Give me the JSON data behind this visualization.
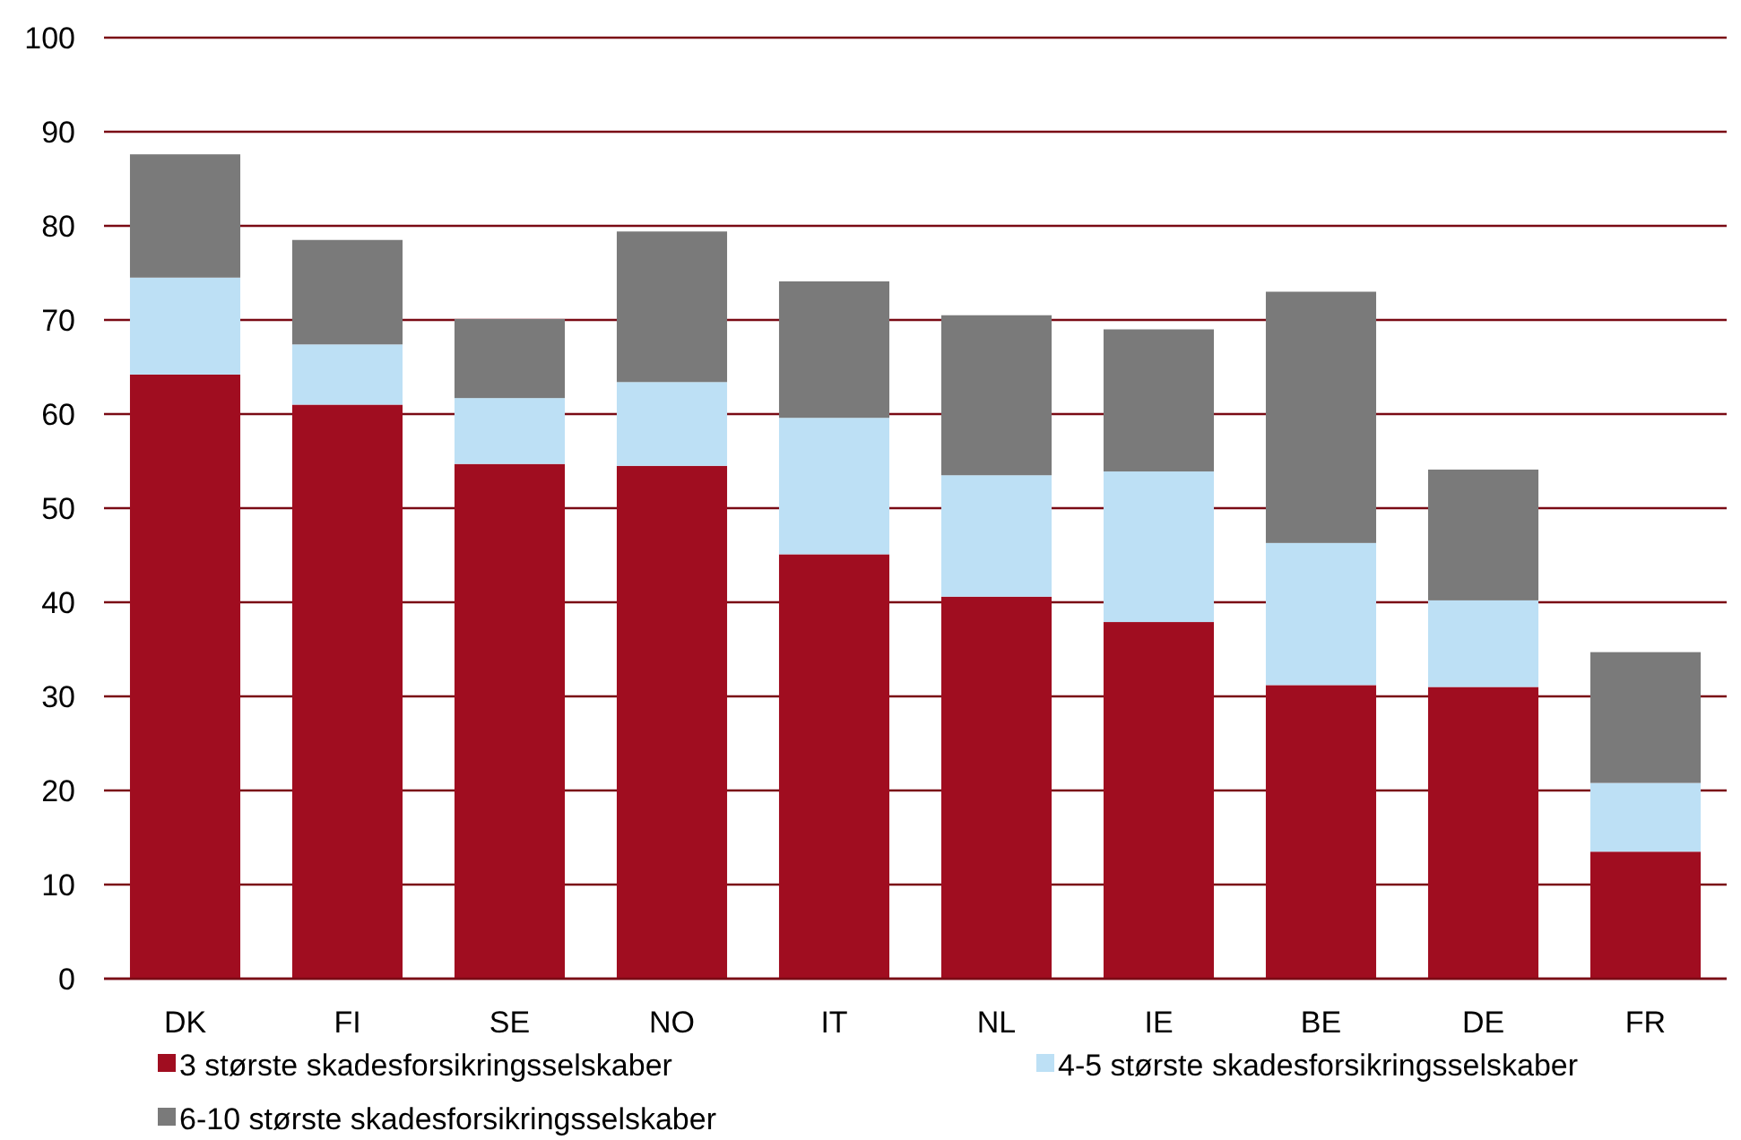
{
  "chart_data": {
    "type": "bar",
    "stacked": true,
    "categories": [
      "DK",
      "FI",
      "SE",
      "NO",
      "IT",
      "NL",
      "IE",
      "BE",
      "DE",
      "FR"
    ],
    "series": [
      {
        "name": "3 største skadesforsikringsselskaber",
        "color": "#a00d20",
        "values": [
          64.2,
          61.0,
          54.7,
          54.5,
          45.1,
          40.6,
          37.9,
          31.2,
          31.0,
          13.5
        ]
      },
      {
        "name": "4-5 største skadesforsikringsselskaber",
        "color": "#bde0f5",
        "values": [
          10.3,
          6.4,
          7.0,
          8.9,
          14.5,
          12.9,
          16.0,
          15.1,
          9.2,
          7.3
        ]
      },
      {
        "name": "6-10 største skadesforsikringsselskaber",
        "color": "#7a7a7a",
        "values": [
          13.1,
          11.1,
          8.4,
          16.0,
          14.5,
          17.0,
          15.1,
          26.7,
          13.9,
          13.9
        ]
      }
    ],
    "ylim": [
      0,
      100
    ],
    "yticks": [
      0,
      10,
      20,
      30,
      40,
      50,
      60,
      70,
      80,
      90,
      100
    ],
    "grid": "y",
    "legend": "bottom"
  }
}
